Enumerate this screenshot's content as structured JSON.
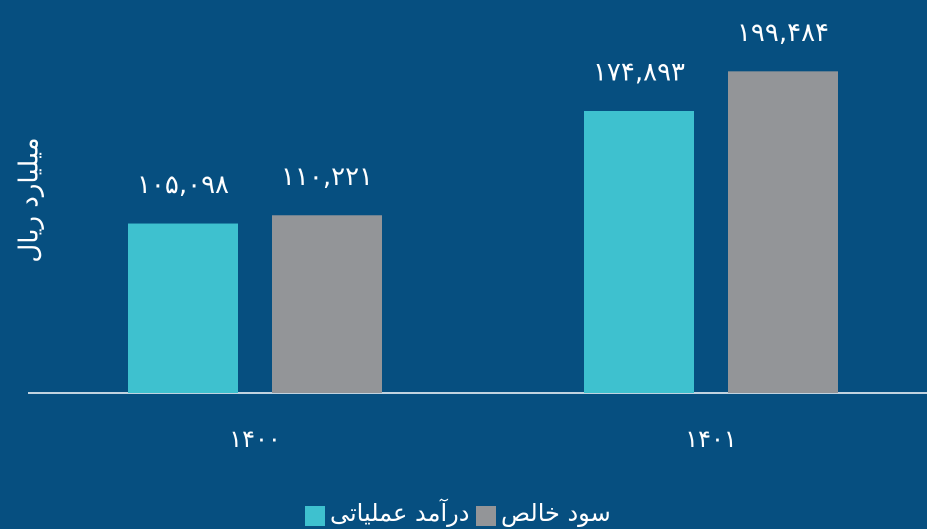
{
  "chart_data": {
    "type": "bar",
    "y_label": "میلیارد ریال",
    "categories": [
      "۱۴۰۰",
      "۱۴۰۱"
    ],
    "series": [
      {
        "name": "درآمد عملیاتی",
        "color": "#3ec1cf",
        "values": [
          105098,
          174893
        ],
        "value_labels": [
          "۱۰۵,۰۹۸",
          "۱۷۴,۸۹۳"
        ]
      },
      {
        "name": "سود خالص",
        "color": "#939598",
        "values": [
          110221,
          199484
        ],
        "value_labels": [
          "۱۱۰,۲۲۱",
          "۱۹۹,۴۸۴"
        ]
      }
    ],
    "ylim": [
      0,
      240000
    ]
  }
}
